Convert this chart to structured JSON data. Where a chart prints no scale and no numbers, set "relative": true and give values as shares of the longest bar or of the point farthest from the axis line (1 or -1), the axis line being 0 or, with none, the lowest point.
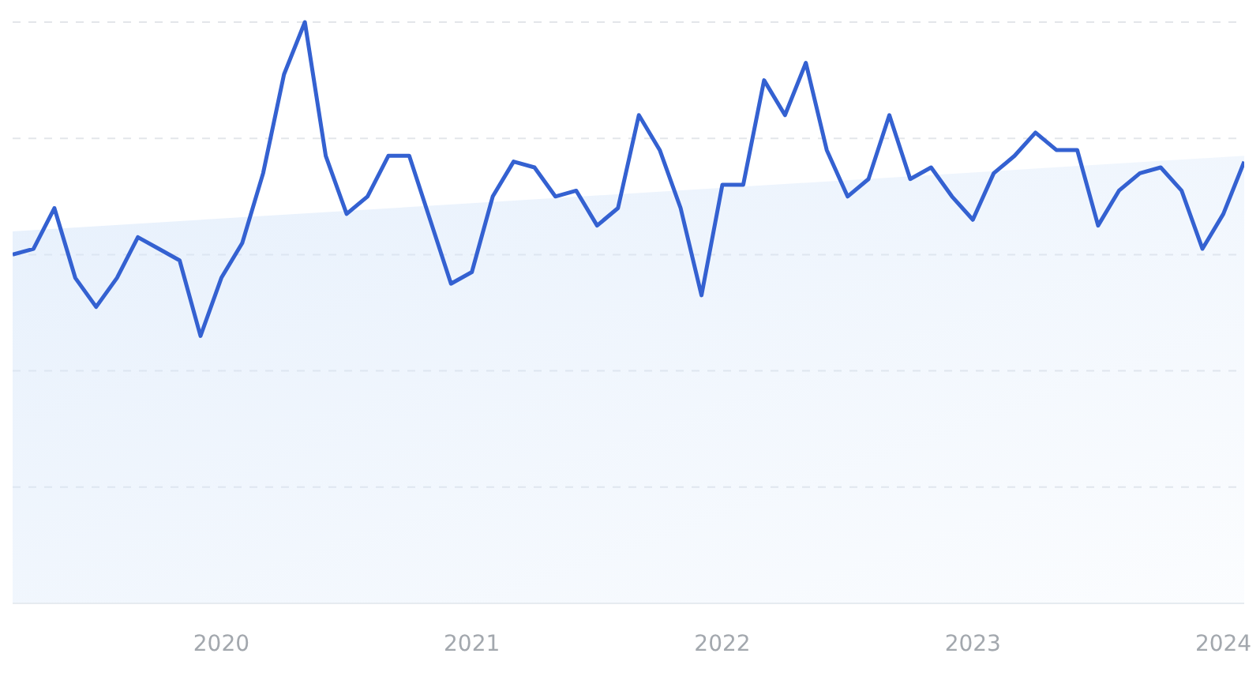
{
  "chart_data": {
    "type": "line",
    "relative": true,
    "grid": "y",
    "line_style": "solid",
    "marker": "none",
    "x": [
      "2019-03",
      "2019-04",
      "2019-05",
      "2019-06",
      "2019-07",
      "2019-08",
      "2019-09",
      "2019-10",
      "2019-11",
      "2019-12",
      "2020-01",
      "2020-02",
      "2020-03",
      "2020-04",
      "2020-05",
      "2020-06",
      "2020-07",
      "2020-08",
      "2020-09",
      "2020-10",
      "2020-11",
      "2020-12",
      "2021-01",
      "2021-02",
      "2021-03",
      "2021-04",
      "2021-05",
      "2021-06",
      "2021-07",
      "2021-08",
      "2021-09",
      "2021-10",
      "2021-11",
      "2021-12",
      "2022-01",
      "2022-02",
      "2022-03",
      "2022-04",
      "2022-05",
      "2022-06",
      "2022-07",
      "2022-08",
      "2022-09",
      "2022-10",
      "2022-11",
      "2022-12",
      "2023-01",
      "2023-02",
      "2023-03",
      "2023-04",
      "2023-05",
      "2023-06",
      "2023-07",
      "2023-08",
      "2023-09",
      "2023-10",
      "2023-11",
      "2023-12",
      "2024-01",
      "2024-02"
    ],
    "xlim": [
      "2019-03",
      "2024-02"
    ],
    "xticks": [
      {
        "value": "2020-01",
        "label": "2020"
      },
      {
        "value": "2021-01",
        "label": "2021"
      },
      {
        "value": "2022-01",
        "label": "2022"
      },
      {
        "value": "2023-01",
        "label": "2023"
      },
      {
        "value": "2024-01",
        "label": "2024"
      }
    ],
    "series": [
      {
        "color": "#3461d1",
        "values": [
          0.6,
          0.61,
          0.68,
          0.56,
          0.51,
          0.56,
          0.63,
          0.61,
          0.59,
          0.46,
          0.56,
          0.62,
          0.74,
          0.91,
          1.0,
          0.77,
          0.67,
          0.7,
          0.77,
          0.77,
          0.66,
          0.55,
          0.57,
          0.7,
          0.76,
          0.75,
          0.7,
          0.71,
          0.65,
          0.68,
          0.84,
          0.78,
          0.68,
          0.53,
          0.72,
          0.72,
          0.9,
          0.84,
          0.93,
          0.78,
          0.7,
          0.73,
          0.84,
          0.73,
          0.75,
          0.7,
          0.66,
          0.74,
          0.77,
          0.81,
          0.78,
          0.78,
          0.65,
          0.71,
          0.74,
          0.75,
          0.71,
          0.61,
          0.67,
          0.76
        ]
      },
      {
        "type": "area",
        "color": "#d6e6fa",
        "x": [
          "2019-03",
          "2024-02"
        ],
        "values": [
          0.64,
          0.77
        ]
      }
    ]
  }
}
